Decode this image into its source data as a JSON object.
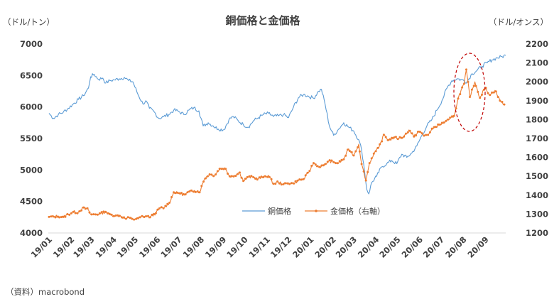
{
  "chart_data": {
    "type": "line",
    "title": "銅価格と金価格",
    "ylabel_left": "（ドル/トン）",
    "ylabel_right": "（ドル/オンス）",
    "source": "（資料）macrobond",
    "xlim": [
      "2019-01-01",
      "2020-09-30"
    ],
    "ylim_left": [
      4000,
      7000
    ],
    "ylim_right": [
      1200,
      2200
    ],
    "x_ticks": [
      "19/01",
      "19/02",
      "19/03",
      "19/04",
      "19/05",
      "19/06",
      "19/07",
      "19/08",
      "19/09",
      "19/10",
      "19/11",
      "19/12",
      "20/01",
      "20/02",
      "20/03",
      "20/04",
      "20/05",
      "20/06",
      "20/07",
      "20/08",
      "20/09"
    ],
    "y_ticks_left": [
      "4000",
      "4500",
      "5000",
      "5500",
      "6000",
      "6500",
      "7000"
    ],
    "y_ticks_right": [
      "1200",
      "1300",
      "1400",
      "1500",
      "1600",
      "1700",
      "1800",
      "1900",
      "2000",
      "2100",
      "2200"
    ],
    "legend_position": "center",
    "grid": false,
    "series": [
      {
        "name": "銅価格",
        "axis": "left",
        "color": "#5b9bd5",
        "points": [
          [
            "2019-01-02",
            5900
          ],
          [
            "2019-01-08",
            5820
          ],
          [
            "2019-01-15",
            5880
          ],
          [
            "2019-01-22",
            5920
          ],
          [
            "2019-01-29",
            5980
          ],
          [
            "2019-02-05",
            6050
          ],
          [
            "2019-02-12",
            6120
          ],
          [
            "2019-02-19",
            6180
          ],
          [
            "2019-02-26",
            6300
          ],
          [
            "2019-03-01",
            6480
          ],
          [
            "2019-03-06",
            6520
          ],
          [
            "2019-03-12",
            6440
          ],
          [
            "2019-03-18",
            6460
          ],
          [
            "2019-03-22",
            6380
          ],
          [
            "2019-03-28",
            6420
          ],
          [
            "2019-04-03",
            6430
          ],
          [
            "2019-04-10",
            6450
          ],
          [
            "2019-04-17",
            6470
          ],
          [
            "2019-04-23",
            6420
          ],
          [
            "2019-04-29",
            6400
          ],
          [
            "2019-05-06",
            6200
          ],
          [
            "2019-05-13",
            6050
          ],
          [
            "2019-05-17",
            6100
          ],
          [
            "2019-05-22",
            5980
          ],
          [
            "2019-05-29",
            5920
          ],
          [
            "2019-06-04",
            5820
          ],
          [
            "2019-06-11",
            5850
          ],
          [
            "2019-06-18",
            5880
          ],
          [
            "2019-06-25",
            5950
          ],
          [
            "2019-07-02",
            5930
          ],
          [
            "2019-07-09",
            5880
          ],
          [
            "2019-07-16",
            5950
          ],
          [
            "2019-07-23",
            5990
          ],
          [
            "2019-07-30",
            5940
          ],
          [
            "2019-08-05",
            5700
          ],
          [
            "2019-08-12",
            5750
          ],
          [
            "2019-08-19",
            5700
          ],
          [
            "2019-08-26",
            5650
          ],
          [
            "2019-09-03",
            5640
          ],
          [
            "2019-09-10",
            5800
          ],
          [
            "2019-09-16",
            5850
          ],
          [
            "2019-09-23",
            5780
          ],
          [
            "2019-09-30",
            5720
          ],
          [
            "2019-10-07",
            5680
          ],
          [
            "2019-10-14",
            5780
          ],
          [
            "2019-10-21",
            5830
          ],
          [
            "2019-10-28",
            5880
          ],
          [
            "2019-11-04",
            5900
          ],
          [
            "2019-11-11",
            5850
          ],
          [
            "2019-11-18",
            5860
          ],
          [
            "2019-11-25",
            5880
          ],
          [
            "2019-12-02",
            5830
          ],
          [
            "2019-12-09",
            6000
          ],
          [
            "2019-12-16",
            6150
          ],
          [
            "2019-12-23",
            6200
          ],
          [
            "2019-12-30",
            6170
          ],
          [
            "2020-01-06",
            6140
          ],
          [
            "2020-01-13",
            6250
          ],
          [
            "2020-01-17",
            6280
          ],
          [
            "2020-01-22",
            6050
          ],
          [
            "2020-01-28",
            5700
          ],
          [
            "2020-02-03",
            5550
          ],
          [
            "2020-02-10",
            5650
          ],
          [
            "2020-02-17",
            5750
          ],
          [
            "2020-02-24",
            5680
          ],
          [
            "2020-03-02",
            5620
          ],
          [
            "2020-03-09",
            5480
          ],
          [
            "2020-03-13",
            5320
          ],
          [
            "2020-03-17",
            5000
          ],
          [
            "2020-03-20",
            4700
          ],
          [
            "2020-03-23",
            4620
          ],
          [
            "2020-03-27",
            4800
          ],
          [
            "2020-04-03",
            4900
          ],
          [
            "2020-04-10",
            5050
          ],
          [
            "2020-04-17",
            5100
          ],
          [
            "2020-04-24",
            5150
          ],
          [
            "2020-05-01",
            5100
          ],
          [
            "2020-05-08",
            5250
          ],
          [
            "2020-05-15",
            5200
          ],
          [
            "2020-05-22",
            5270
          ],
          [
            "2020-05-29",
            5380
          ],
          [
            "2020-06-05",
            5550
          ],
          [
            "2020-06-12",
            5700
          ],
          [
            "2020-06-19",
            5800
          ],
          [
            "2020-06-26",
            5950
          ],
          [
            "2020-07-03",
            6100
          ],
          [
            "2020-07-10",
            6300
          ],
          [
            "2020-07-17",
            6420
          ],
          [
            "2020-07-24",
            6450
          ],
          [
            "2020-07-31",
            6430
          ],
          [
            "2020-08-07",
            6400
          ],
          [
            "2020-08-14",
            6530
          ],
          [
            "2020-08-21",
            6580
          ],
          [
            "2020-08-28",
            6650
          ],
          [
            "2020-09-04",
            6700
          ],
          [
            "2020-09-11",
            6750
          ],
          [
            "2020-09-18",
            6780
          ],
          [
            "2020-09-25",
            6800
          ],
          [
            "2020-09-30",
            6820
          ]
        ]
      },
      {
        "name": "金価格（右軸）",
        "axis": "right",
        "color": "#ed7d31",
        "points": [
          [
            "2019-01-02",
            1285
          ],
          [
            "2019-01-08",
            1287
          ],
          [
            "2019-01-15",
            1290
          ],
          [
            "2019-01-22",
            1285
          ],
          [
            "2019-01-29",
            1300
          ],
          [
            "2019-02-05",
            1312
          ],
          [
            "2019-02-12",
            1310
          ],
          [
            "2019-02-19",
            1335
          ],
          [
            "2019-02-26",
            1322
          ],
          [
            "2019-03-01",
            1298
          ],
          [
            "2019-03-08",
            1298
          ],
          [
            "2019-03-15",
            1302
          ],
          [
            "2019-03-22",
            1312
          ],
          [
            "2019-03-29",
            1295
          ],
          [
            "2019-04-05",
            1292
          ],
          [
            "2019-04-12",
            1290
          ],
          [
            "2019-04-18",
            1275
          ],
          [
            "2019-04-25",
            1280
          ],
          [
            "2019-05-02",
            1272
          ],
          [
            "2019-05-09",
            1283
          ],
          [
            "2019-05-16",
            1290
          ],
          [
            "2019-05-23",
            1283
          ],
          [
            "2019-05-31",
            1305
          ],
          [
            "2019-06-05",
            1330
          ],
          [
            "2019-06-12",
            1335
          ],
          [
            "2019-06-19",
            1360
          ],
          [
            "2019-06-25",
            1415
          ],
          [
            "2019-07-03",
            1410
          ],
          [
            "2019-07-10",
            1400
          ],
          [
            "2019-07-17",
            1420
          ],
          [
            "2019-07-24",
            1425
          ],
          [
            "2019-07-31",
            1415
          ],
          [
            "2019-08-07",
            1490
          ],
          [
            "2019-08-14",
            1510
          ],
          [
            "2019-08-21",
            1505
          ],
          [
            "2019-08-28",
            1540
          ],
          [
            "2019-09-04",
            1545
          ],
          [
            "2019-09-11",
            1500
          ],
          [
            "2019-09-18",
            1505
          ],
          [
            "2019-09-25",
            1520
          ],
          [
            "2019-09-30",
            1475
          ],
          [
            "2019-10-07",
            1495
          ],
          [
            "2019-10-14",
            1495
          ],
          [
            "2019-10-21",
            1488
          ],
          [
            "2019-10-28",
            1495
          ],
          [
            "2019-11-04",
            1505
          ],
          [
            "2019-11-11",
            1460
          ],
          [
            "2019-11-18",
            1470
          ],
          [
            "2019-11-25",
            1458
          ],
          [
            "2019-12-02",
            1465
          ],
          [
            "2019-12-09",
            1462
          ],
          [
            "2019-12-16",
            1478
          ],
          [
            "2019-12-23",
            1485
          ],
          [
            "2019-12-30",
            1520
          ],
          [
            "2020-01-06",
            1570
          ],
          [
            "2020-01-13",
            1548
          ],
          [
            "2020-01-20",
            1558
          ],
          [
            "2020-01-27",
            1580
          ],
          [
            "2020-02-03",
            1575
          ],
          [
            "2020-02-10",
            1570
          ],
          [
            "2020-02-17",
            1590
          ],
          [
            "2020-02-24",
            1645
          ],
          [
            "2020-03-02",
            1610
          ],
          [
            "2020-03-09",
            1670
          ],
          [
            "2020-03-13",
            1565
          ],
          [
            "2020-03-19",
            1478
          ],
          [
            "2020-03-24",
            1570
          ],
          [
            "2020-03-30",
            1620
          ],
          [
            "2020-04-06",
            1650
          ],
          [
            "2020-04-13",
            1720
          ],
          [
            "2020-04-20",
            1690
          ],
          [
            "2020-04-27",
            1705
          ],
          [
            "2020-05-04",
            1700
          ],
          [
            "2020-05-11",
            1710
          ],
          [
            "2020-05-18",
            1745
          ],
          [
            "2020-05-25",
            1710
          ],
          [
            "2020-06-01",
            1740
          ],
          [
            "2020-06-08",
            1715
          ],
          [
            "2020-06-15",
            1725
          ],
          [
            "2020-06-22",
            1760
          ],
          [
            "2020-06-29",
            1770
          ],
          [
            "2020-07-06",
            1785
          ],
          [
            "2020-07-13",
            1800
          ],
          [
            "2020-07-20",
            1820
          ],
          [
            "2020-07-27",
            1930
          ],
          [
            "2020-08-03",
            1990
          ],
          [
            "2020-08-06",
            2065
          ],
          [
            "2020-08-11",
            1920
          ],
          [
            "2020-08-18",
            2000
          ],
          [
            "2020-08-25",
            1915
          ],
          [
            "2020-09-01",
            1970
          ],
          [
            "2020-09-08",
            1930
          ],
          [
            "2020-09-15",
            1955
          ],
          [
            "2020-09-22",
            1900
          ],
          [
            "2020-09-28",
            1880
          ]
        ]
      }
    ],
    "annotation": "dashed red ellipse highlighting August 2020 peak"
  }
}
